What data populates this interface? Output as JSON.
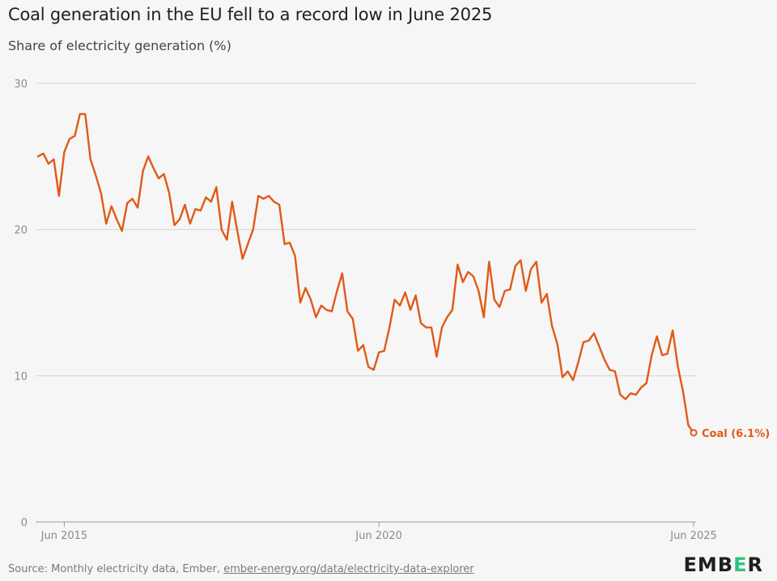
{
  "header": {
    "title": "Coal generation in the EU fell to a record low in June 2025",
    "subtitle": "Share of electricity generation (%)"
  },
  "footer": {
    "source_prefix": "Source: Monthly electricity data, Ember, ",
    "source_link": "ember-energy.org/data/electricity-data-explorer"
  },
  "logo": {
    "pre": "EMB",
    "mark": "E",
    "post": "R"
  },
  "colors": {
    "series": "#e05a16",
    "grid": "#d4d4d4",
    "axis_text": "#8a8a8a",
    "logo_accent": "#2ec47a"
  },
  "chart_data": {
    "type": "line",
    "ylim": [
      0,
      30
    ],
    "yticks": [
      0,
      10,
      20,
      30
    ],
    "xticks": [
      {
        "label": "Jun 2015",
        "x": "2015-06"
      },
      {
        "label": "Jun 2020",
        "x": "2020-06"
      },
      {
        "label": "Jun 2025",
        "x": "2025-06"
      }
    ],
    "x_start": "2015-01",
    "x_end": "2025-06",
    "grid": true,
    "series": [
      {
        "name": "Coal",
        "end_label": "Coal (6.1%)",
        "values": [
          25.0,
          25.2,
          24.5,
          24.8,
          22.3,
          25.3,
          26.2,
          26.4,
          27.9,
          27.9,
          24.8,
          23.7,
          22.5,
          20.4,
          21.6,
          20.7,
          19.9,
          21.8,
          22.1,
          21.5,
          24.0,
          25.0,
          24.2,
          23.5,
          23.8,
          22.5,
          20.3,
          20.7,
          21.7,
          20.4,
          21.4,
          21.3,
          22.2,
          21.9,
          22.9,
          20.0,
          19.3,
          21.9,
          19.9,
          18.0,
          19.0,
          20.0,
          22.3,
          22.1,
          22.3,
          21.9,
          21.7,
          19.0,
          19.1,
          18.2,
          15.0,
          16.0,
          15.2,
          14.0,
          14.8,
          14.5,
          14.4,
          15.8,
          17.0,
          14.4,
          13.9,
          11.7,
          12.1,
          10.6,
          10.4,
          11.6,
          11.7,
          13.3,
          15.2,
          14.8,
          15.7,
          14.5,
          15.5,
          13.6,
          13.3,
          13.3,
          11.3,
          13.3,
          14.0,
          14.5,
          17.6,
          16.4,
          17.1,
          16.8,
          15.8,
          14.0,
          17.8,
          15.2,
          14.7,
          15.8,
          15.9,
          17.5,
          17.9,
          15.8,
          17.3,
          17.8,
          15.0,
          15.6,
          13.4,
          12.2,
          9.9,
          10.3,
          9.7,
          10.9,
          12.3,
          12.4,
          12.9,
          12.0,
          11.1,
          10.4,
          10.3,
          8.7,
          8.4,
          8.8,
          8.7,
          9.2,
          9.5,
          11.4,
          12.7,
          11.4,
          11.5,
          13.1,
          10.6,
          8.9,
          6.6,
          6.1
        ]
      }
    ]
  }
}
